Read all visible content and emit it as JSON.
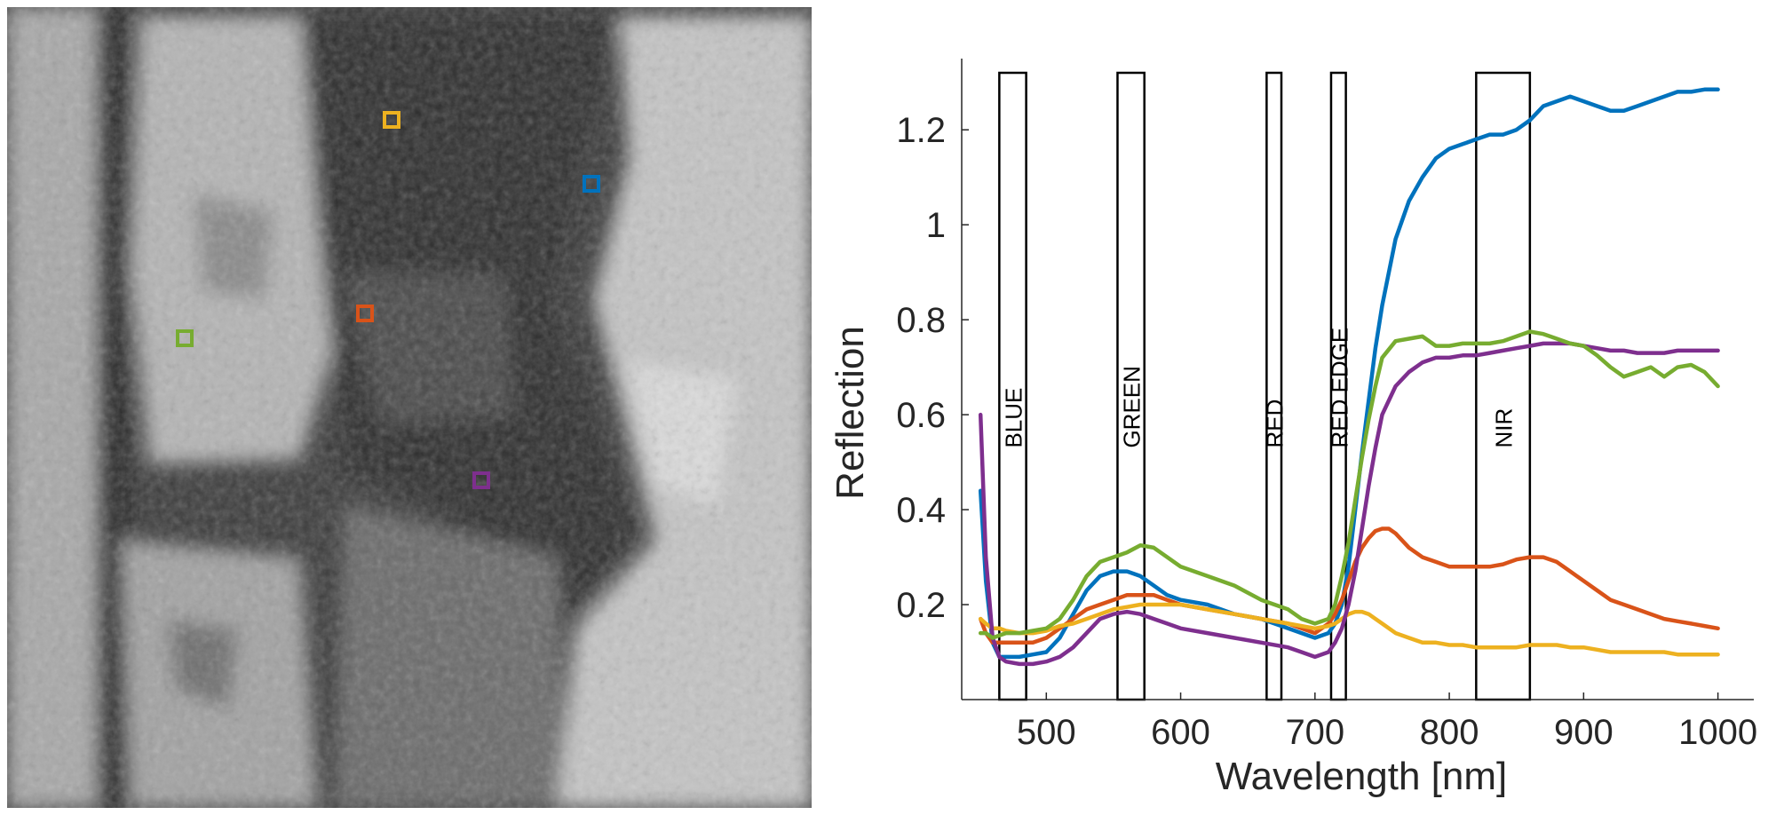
{
  "image_panel": {
    "description_hidden": "",
    "sample_markers": [
      {
        "color": "#0072BD"
      },
      {
        "color": "#D95319"
      },
      {
        "color": "#EDB120"
      },
      {
        "color": "#7E2F8E"
      },
      {
        "color": "#77AC30"
      }
    ]
  },
  "chart_data": {
    "type": "line",
    "title": "",
    "xlabel": "Wavelength [nm]",
    "ylabel": "Reflection",
    "xlim": [
      437,
      1030
    ],
    "ylim": [
      0,
      1.35
    ],
    "xticks": [
      500,
      600,
      700,
      800,
      900,
      1000
    ],
    "xtick_labels": [
      "500",
      "600",
      "700",
      "800",
      "900",
      "1000"
    ],
    "yticks": [
      0.2,
      0.4,
      0.6,
      0.8,
      1.0,
      1.2
    ],
    "ytick_labels": [
      "0.2",
      "0.4",
      "0.6",
      "0.8",
      "1",
      "1.2"
    ],
    "grid": false,
    "bands": [
      {
        "label": "BLUE",
        "x0": 465,
        "x1": 485
      },
      {
        "label": "GREEN",
        "x0": 553,
        "x1": 573
      },
      {
        "label": "RED",
        "x0": 664,
        "x1": 675
      },
      {
        "label": "RED EDGE",
        "x0": 712,
        "x1": 723
      },
      {
        "label": "NIR",
        "x0": 820,
        "x1": 860
      }
    ],
    "series": [
      {
        "color": "#0072BD",
        "x": [
          451,
          455,
          460,
          465,
          470,
          480,
          490,
          500,
          510,
          520,
          530,
          540,
          550,
          560,
          570,
          580,
          590,
          600,
          620,
          640,
          660,
          680,
          690,
          700,
          710,
          715,
          720,
          725,
          730,
          735,
          740,
          745,
          750,
          760,
          770,
          780,
          790,
          800,
          810,
          820,
          830,
          840,
          850,
          860,
          870,
          880,
          890,
          900,
          910,
          920,
          930,
          940,
          950,
          960,
          970,
          980,
          990,
          1000
        ],
        "y": [
          0.44,
          0.25,
          0.12,
          0.09,
          0.09,
          0.09,
          0.095,
          0.1,
          0.13,
          0.18,
          0.23,
          0.26,
          0.27,
          0.27,
          0.26,
          0.24,
          0.22,
          0.21,
          0.2,
          0.18,
          0.17,
          0.15,
          0.14,
          0.13,
          0.14,
          0.16,
          0.2,
          0.28,
          0.4,
          0.52,
          0.63,
          0.74,
          0.83,
          0.97,
          1.05,
          1.1,
          1.14,
          1.16,
          1.17,
          1.18,
          1.19,
          1.19,
          1.2,
          1.22,
          1.25,
          1.26,
          1.27,
          1.26,
          1.25,
          1.24,
          1.24,
          1.25,
          1.26,
          1.27,
          1.28,
          1.28,
          1.285,
          1.285
        ]
      },
      {
        "color": "#D95319",
        "x": [
          451,
          455,
          460,
          465,
          470,
          480,
          490,
          500,
          510,
          520,
          530,
          540,
          550,
          560,
          570,
          580,
          590,
          600,
          620,
          640,
          660,
          680,
          690,
          700,
          710,
          715,
          720,
          725,
          730,
          735,
          740,
          745,
          750,
          755,
          760,
          770,
          780,
          790,
          800,
          810,
          820,
          830,
          840,
          850,
          860,
          870,
          880,
          890,
          900,
          910,
          920,
          930,
          940,
          950,
          960,
          970,
          980,
          990,
          1000
        ],
        "y": [
          0.17,
          0.14,
          0.12,
          0.12,
          0.12,
          0.12,
          0.12,
          0.13,
          0.15,
          0.17,
          0.19,
          0.2,
          0.21,
          0.22,
          0.22,
          0.22,
          0.21,
          0.2,
          0.19,
          0.18,
          0.17,
          0.16,
          0.15,
          0.14,
          0.16,
          0.18,
          0.21,
          0.25,
          0.29,
          0.32,
          0.34,
          0.355,
          0.36,
          0.36,
          0.35,
          0.32,
          0.3,
          0.29,
          0.28,
          0.28,
          0.28,
          0.28,
          0.285,
          0.295,
          0.3,
          0.3,
          0.29,
          0.27,
          0.25,
          0.23,
          0.21,
          0.2,
          0.19,
          0.18,
          0.17,
          0.165,
          0.16,
          0.155,
          0.15
        ]
      },
      {
        "color": "#EDB120",
        "x": [
          451,
          455,
          460,
          465,
          470,
          480,
          490,
          500,
          510,
          520,
          530,
          540,
          550,
          560,
          570,
          580,
          590,
          600,
          620,
          640,
          660,
          680,
          690,
          700,
          710,
          715,
          720,
          725,
          730,
          735,
          740,
          745,
          750,
          760,
          770,
          780,
          790,
          800,
          810,
          820,
          830,
          840,
          850,
          860,
          870,
          880,
          890,
          900,
          910,
          920,
          930,
          940,
          950,
          960,
          970,
          980,
          990,
          1000
        ],
        "y": [
          0.17,
          0.16,
          0.15,
          0.15,
          0.145,
          0.14,
          0.14,
          0.145,
          0.155,
          0.16,
          0.17,
          0.18,
          0.19,
          0.195,
          0.2,
          0.2,
          0.2,
          0.2,
          0.19,
          0.18,
          0.17,
          0.16,
          0.155,
          0.15,
          0.155,
          0.16,
          0.17,
          0.18,
          0.185,
          0.185,
          0.18,
          0.17,
          0.16,
          0.14,
          0.13,
          0.12,
          0.12,
          0.115,
          0.115,
          0.11,
          0.11,
          0.11,
          0.11,
          0.115,
          0.115,
          0.115,
          0.11,
          0.11,
          0.105,
          0.1,
          0.1,
          0.1,
          0.1,
          0.1,
          0.095,
          0.095,
          0.095,
          0.095
        ]
      },
      {
        "color": "#7E2F8E",
        "x": [
          451,
          455,
          460,
          465,
          470,
          480,
          490,
          500,
          510,
          520,
          530,
          540,
          550,
          560,
          570,
          580,
          590,
          600,
          620,
          640,
          660,
          680,
          690,
          700,
          710,
          715,
          720,
          725,
          730,
          735,
          740,
          745,
          750,
          760,
          770,
          780,
          790,
          800,
          810,
          820,
          830,
          840,
          850,
          860,
          870,
          880,
          890,
          900,
          910,
          920,
          930,
          940,
          950,
          960,
          970,
          980,
          990,
          1000
        ],
        "y": [
          0.6,
          0.3,
          0.13,
          0.09,
          0.08,
          0.075,
          0.075,
          0.08,
          0.09,
          0.11,
          0.14,
          0.17,
          0.18,
          0.185,
          0.18,
          0.17,
          0.16,
          0.15,
          0.14,
          0.13,
          0.12,
          0.11,
          0.1,
          0.09,
          0.1,
          0.12,
          0.15,
          0.2,
          0.27,
          0.36,
          0.45,
          0.53,
          0.6,
          0.66,
          0.69,
          0.71,
          0.72,
          0.72,
          0.725,
          0.725,
          0.73,
          0.735,
          0.74,
          0.745,
          0.75,
          0.75,
          0.75,
          0.745,
          0.74,
          0.735,
          0.735,
          0.73,
          0.73,
          0.73,
          0.735,
          0.735,
          0.735,
          0.735
        ]
      },
      {
        "color": "#77AC30",
        "x": [
          451,
          455,
          460,
          465,
          470,
          480,
          490,
          500,
          510,
          520,
          530,
          540,
          550,
          560,
          570,
          580,
          590,
          600,
          620,
          640,
          660,
          680,
          690,
          700,
          710,
          715,
          720,
          725,
          730,
          735,
          740,
          745,
          750,
          760,
          770,
          780,
          790,
          800,
          810,
          820,
          830,
          840,
          850,
          860,
          870,
          880,
          890,
          900,
          910,
          920,
          930,
          940,
          950,
          960,
          970,
          980,
          990,
          1000
        ],
        "y": [
          0.14,
          0.14,
          0.13,
          0.135,
          0.14,
          0.14,
          0.145,
          0.15,
          0.17,
          0.21,
          0.26,
          0.29,
          0.3,
          0.31,
          0.325,
          0.32,
          0.3,
          0.28,
          0.26,
          0.24,
          0.21,
          0.19,
          0.17,
          0.16,
          0.17,
          0.2,
          0.26,
          0.33,
          0.42,
          0.51,
          0.59,
          0.66,
          0.72,
          0.755,
          0.76,
          0.765,
          0.745,
          0.745,
          0.75,
          0.75,
          0.75,
          0.755,
          0.765,
          0.775,
          0.77,
          0.76,
          0.75,
          0.745,
          0.725,
          0.7,
          0.68,
          0.69,
          0.7,
          0.68,
          0.7,
          0.705,
          0.69,
          0.66
        ]
      }
    ]
  }
}
